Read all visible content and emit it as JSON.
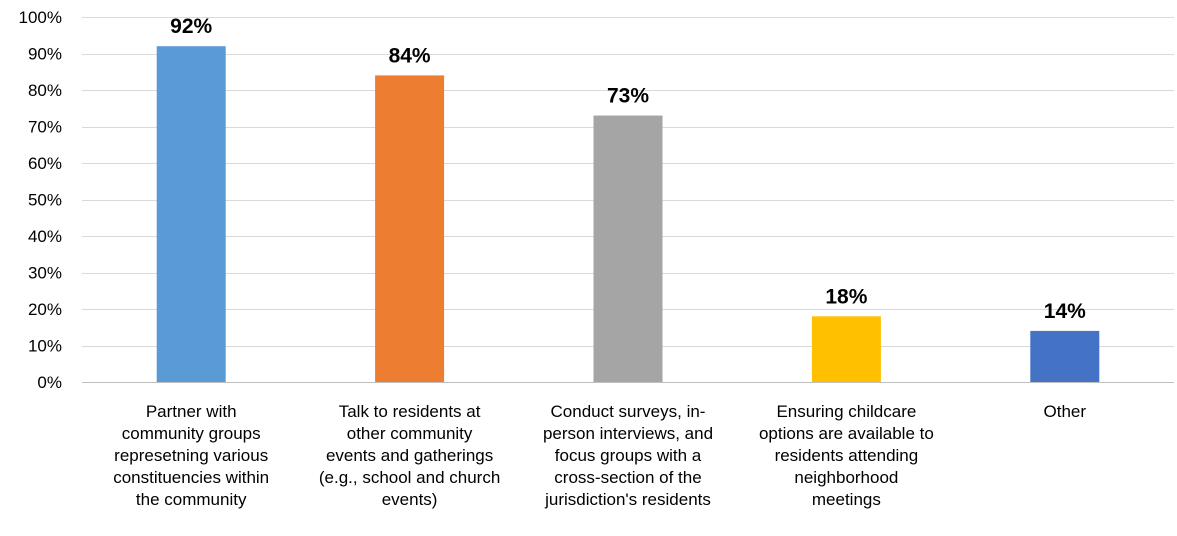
{
  "chart_data": {
    "type": "bar",
    "title": "",
    "xlabel": "",
    "ylabel": "",
    "categories": [
      [
        "Partner with",
        "community groups",
        "represetning various",
        "constituencies within",
        "the community"
      ],
      [
        "Talk to residents at",
        "other community",
        "events and gatherings",
        "(e.g., school and church",
        "events)"
      ],
      [
        "Conduct surveys, in-",
        "person interviews, and",
        "focus groups with a",
        "cross-section of the",
        "jurisdiction's residents"
      ],
      [
        "Ensuring childcare",
        "options are available to",
        "residents attending",
        "neighborhood",
        "meetings"
      ],
      [
        "Other"
      ]
    ],
    "values": [
      92,
      84,
      73,
      18,
      14
    ],
    "value_labels": [
      "92%",
      "84%",
      "73%",
      "18%",
      "14%"
    ],
    "colors": [
      "#5B9BD5",
      "#ED7D31",
      "#A5A5A5",
      "#FFC000",
      "#4472C4"
    ],
    "ylim": [
      0,
      100
    ],
    "yticks": [
      0,
      10,
      20,
      30,
      40,
      50,
      60,
      70,
      80,
      90,
      100
    ],
    "ytick_labels": [
      "0%",
      "10%",
      "20%",
      "30%",
      "40%",
      "50%",
      "60%",
      "70%",
      "80%",
      "90%",
      "100%"
    ],
    "grid": true,
    "legend": "none"
  }
}
